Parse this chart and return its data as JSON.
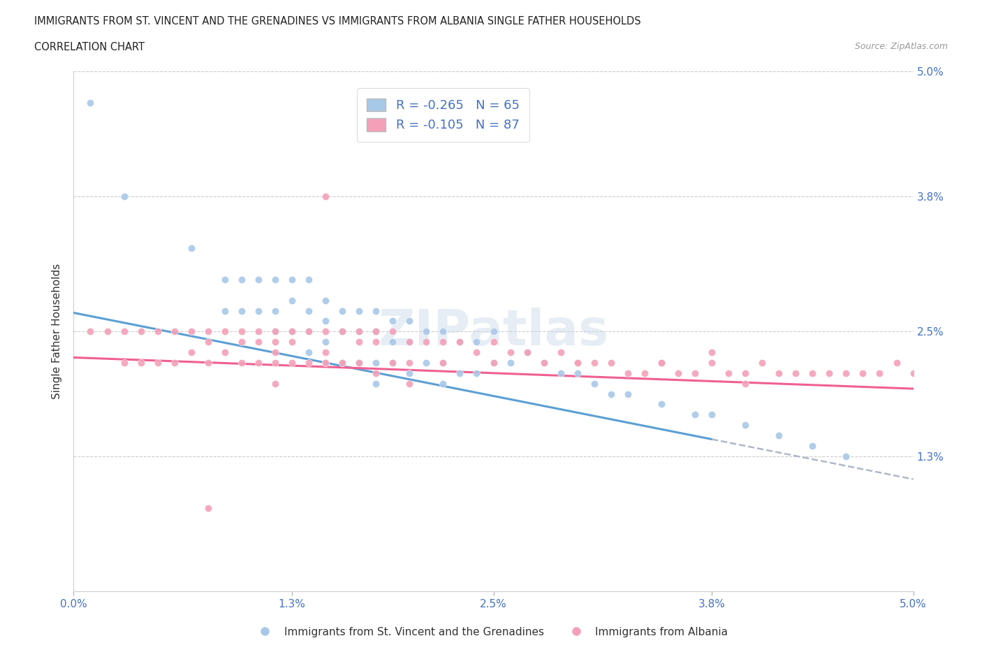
{
  "title_line1": "IMMIGRANTS FROM ST. VINCENT AND THE GRENADINES VS IMMIGRANTS FROM ALBANIA SINGLE FATHER HOUSEHOLDS",
  "title_line2": "CORRELATION CHART",
  "source_text": "Source: ZipAtlas.com",
  "ylabel": "Single Father Households",
  "xlim": [
    0.0,
    0.05
  ],
  "ylim": [
    0.0,
    0.05
  ],
  "xtick_labels": [
    "0.0%",
    "1.3%",
    "2.5%",
    "3.8%",
    "5.0%"
  ],
  "xtick_vals": [
    0.0,
    0.013,
    0.025,
    0.038,
    0.05
  ],
  "ytick_labels": [
    "5.0%",
    "3.8%",
    "2.5%",
    "1.3%"
  ],
  "ytick_vals": [
    0.05,
    0.038,
    0.025,
    0.013
  ],
  "color_blue": "#a8c8e8",
  "color_pink": "#f4a0b8",
  "line_blue": "#5b9fd4",
  "line_pink": "#f06090",
  "line_dashed_color": "#b0b8c8",
  "R_blue": -0.265,
  "N_blue": 65,
  "R_pink": -0.105,
  "N_pink": 87,
  "legend_label_blue": "Immigrants from St. Vincent and the Grenadines",
  "legend_label_pink": "Immigrants from Albania",
  "watermark": "ZIPatlas",
  "blue_intercept": 0.0268,
  "blue_slope": -0.32,
  "pink_intercept": 0.0225,
  "pink_slope": -0.06,
  "blue_x": [
    0.001,
    0.003,
    0.007,
    0.009,
    0.009,
    0.01,
    0.01,
    0.011,
    0.011,
    0.012,
    0.012,
    0.012,
    0.013,
    0.013,
    0.013,
    0.014,
    0.014,
    0.014,
    0.014,
    0.015,
    0.015,
    0.015,
    0.015,
    0.016,
    0.016,
    0.016,
    0.017,
    0.017,
    0.017,
    0.018,
    0.018,
    0.018,
    0.018,
    0.019,
    0.019,
    0.019,
    0.02,
    0.02,
    0.02,
    0.021,
    0.021,
    0.022,
    0.022,
    0.022,
    0.023,
    0.023,
    0.024,
    0.024,
    0.025,
    0.025,
    0.026,
    0.027,
    0.028,
    0.029,
    0.03,
    0.031,
    0.032,
    0.033,
    0.035,
    0.037,
    0.038,
    0.04,
    0.042,
    0.044,
    0.046
  ],
  "blue_y": [
    0.047,
    0.038,
    0.033,
    0.03,
    0.027,
    0.03,
    0.027,
    0.03,
    0.027,
    0.03,
    0.027,
    0.025,
    0.03,
    0.028,
    0.025,
    0.03,
    0.027,
    0.025,
    0.023,
    0.028,
    0.026,
    0.024,
    0.022,
    0.027,
    0.025,
    0.022,
    0.027,
    0.025,
    0.022,
    0.027,
    0.025,
    0.022,
    0.02,
    0.026,
    0.024,
    0.022,
    0.026,
    0.024,
    0.021,
    0.025,
    0.022,
    0.025,
    0.022,
    0.02,
    0.024,
    0.021,
    0.024,
    0.021,
    0.025,
    0.022,
    0.022,
    0.023,
    0.022,
    0.021,
    0.021,
    0.02,
    0.019,
    0.019,
    0.018,
    0.017,
    0.017,
    0.016,
    0.015,
    0.014,
    0.013
  ],
  "pink_x": [
    0.001,
    0.002,
    0.003,
    0.003,
    0.004,
    0.004,
    0.005,
    0.005,
    0.006,
    0.006,
    0.007,
    0.007,
    0.008,
    0.008,
    0.008,
    0.009,
    0.009,
    0.01,
    0.01,
    0.01,
    0.011,
    0.011,
    0.011,
    0.012,
    0.012,
    0.012,
    0.012,
    0.013,
    0.013,
    0.013,
    0.014,
    0.014,
    0.015,
    0.015,
    0.015,
    0.016,
    0.016,
    0.017,
    0.017,
    0.017,
    0.018,
    0.018,
    0.018,
    0.019,
    0.019,
    0.02,
    0.02,
    0.021,
    0.022,
    0.022,
    0.023,
    0.024,
    0.025,
    0.026,
    0.027,
    0.028,
    0.029,
    0.03,
    0.031,
    0.032,
    0.033,
    0.034,
    0.035,
    0.036,
    0.037,
    0.038,
    0.039,
    0.04,
    0.041,
    0.042,
    0.043,
    0.044,
    0.045,
    0.046,
    0.047,
    0.048,
    0.049,
    0.05,
    0.015,
    0.025,
    0.035,
    0.04,
    0.03,
    0.038,
    0.02,
    0.008,
    0.012
  ],
  "pink_y": [
    0.025,
    0.025,
    0.025,
    0.022,
    0.025,
    0.022,
    0.025,
    0.022,
    0.025,
    0.022,
    0.025,
    0.023,
    0.025,
    0.024,
    0.022,
    0.025,
    0.023,
    0.025,
    0.024,
    0.022,
    0.025,
    0.024,
    0.022,
    0.025,
    0.024,
    0.022,
    0.02,
    0.025,
    0.024,
    0.022,
    0.025,
    0.022,
    0.038,
    0.025,
    0.022,
    0.025,
    0.022,
    0.025,
    0.024,
    0.022,
    0.025,
    0.024,
    0.021,
    0.025,
    0.022,
    0.024,
    0.022,
    0.024,
    0.024,
    0.022,
    0.024,
    0.023,
    0.024,
    0.023,
    0.023,
    0.022,
    0.023,
    0.022,
    0.022,
    0.022,
    0.021,
    0.021,
    0.022,
    0.021,
    0.021,
    0.022,
    0.021,
    0.021,
    0.022,
    0.021,
    0.021,
    0.021,
    0.021,
    0.021,
    0.021,
    0.021,
    0.022,
    0.021,
    0.023,
    0.022,
    0.022,
    0.02,
    0.022,
    0.023,
    0.02,
    0.008,
    0.023
  ]
}
